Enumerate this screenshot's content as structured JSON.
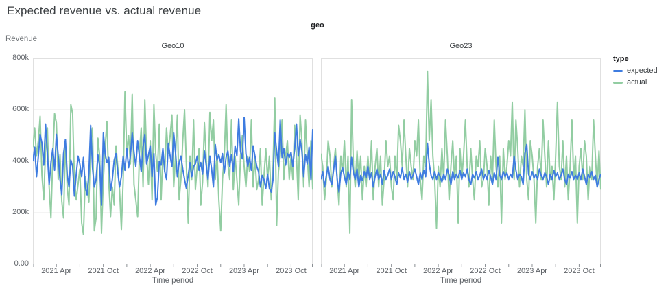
{
  "page": {
    "title": "Expected revenue vs. actual revenue"
  },
  "facet": {
    "label": "geo"
  },
  "legend": {
    "title": "type",
    "items": [
      {
        "label": "expected",
        "color": "#3e7ce0"
      },
      {
        "label": "actual",
        "color": "#92cda2"
      }
    ]
  },
  "colors": {
    "expected_line": "#3e7ce0",
    "actual_line": "#92cda2",
    "grid": "#e9e9e9",
    "plot_border": "#e0e0e0",
    "axis_line": "#8a8f94",
    "tick_text": "#5f6368"
  },
  "chart_data": {
    "type": "line",
    "title": "Expected revenue vs. actual revenue",
    "facet_field": "geo",
    "xlabel": "Time period",
    "ylabel": "Revenue",
    "ylim": [
      0,
      800000
    ],
    "value_unit_multiplier": 1000,
    "x_domain": "weekly, 2021 Jan through 2023 Dec (156 points)",
    "grid": true,
    "legend_position": "right",
    "y_ticks": [
      {
        "value": 800,
        "label": "800k"
      },
      {
        "value": 600,
        "label": "600k"
      },
      {
        "value": 400,
        "label": "400k"
      },
      {
        "value": 200,
        "label": "200k"
      },
      {
        "value": 0,
        "label": "0.00"
      }
    ],
    "x_ticks": {
      "labeled": [
        {
          "week": 13,
          "label": "2021 Apr"
        },
        {
          "week": 39,
          "label": "2021 Oct"
        },
        {
          "week": 65,
          "label": "2022 Apr"
        },
        {
          "week": 91,
          "label": "2022 Oct"
        },
        {
          "week": 117,
          "label": "2023 Apr"
        },
        {
          "week": 143,
          "label": "2023 Oct"
        }
      ],
      "minor_weeks": [
        0,
        26,
        52,
        78,
        104,
        130,
        155
      ]
    },
    "series_colors": {
      "expected": "#3e7ce0",
      "actual": "#92cda2"
    },
    "panels": [
      {
        "title": "Geo10",
        "series": [
          {
            "name": "expected",
            "values": [
              400,
              455,
              340,
              420,
              505,
              470,
              385,
              545,
              430,
              310,
              395,
              450,
              365,
              505,
              420,
              330,
              270,
              430,
              485,
              350,
              300,
              405,
              380,
              265,
              350,
              420,
              390,
              340,
              415,
              300,
              270,
              355,
              540,
              375,
              300,
              330,
              425,
              380,
              230,
              510,
              430,
              395,
              415,
              285,
              330,
              405,
              430,
              360,
              300,
              340,
              420,
              365,
              450,
              375,
              420,
              510,
              435,
              380,
              480,
              420,
              360,
              455,
              505,
              390,
              425,
              460,
              340,
              430,
              230,
              260,
              400,
              385,
              450,
              360,
              330,
              470,
              420,
              380,
              510,
              435,
              340,
              395,
              420,
              370,
              330,
              295,
              345,
              395,
              340,
              380,
              390,
              420,
              365,
              395,
              350,
              440,
              385,
              330,
              420,
              370,
              300,
              465,
              405,
              425,
              395,
              430,
              355,
              415,
              440,
              380,
              425,
              360,
              460,
              420,
              565,
              440,
              410,
              570,
              430,
              380,
              415,
              365,
              460,
              420,
              380,
              360,
              300,
              345,
              330,
              295,
              350,
              295,
              280,
              330,
              510,
              440,
              380,
              560,
              415,
              450,
              385,
              430,
              415,
              435,
              380,
              450,
              545,
              420,
              485,
              440,
              340,
              425,
              390,
              455,
              330,
              525
            ]
          },
          {
            "name": "actual",
            "values": [
              455,
              530,
              420,
              480,
              575,
              345,
              250,
              445,
              530,
              300,
              180,
              420,
              585,
              550,
              330,
              425,
              245,
              180,
              480,
              300,
              230,
              620,
              585,
              330,
              250,
              310,
              370,
              160,
              115,
              340,
              300,
              240,
              475,
              530,
              130,
              180,
              490,
              420,
              120,
              330,
              455,
              555,
              320,
              185,
              300,
              230,
              460,
              380,
              290,
              135,
              325,
              670,
              430,
              500,
              390,
              660,
              310,
              250,
              185,
              430,
              530,
              300,
              640,
              420,
              310,
              480,
              250,
              620,
              430,
              360,
              545,
              250,
              430,
              360,
              530,
              430,
              500,
              580,
              300,
              420,
              580,
              250,
              330,
              480,
              600,
              390,
              160,
              420,
              330,
              560,
              290,
              380,
              450,
              230,
              320,
              550,
              410,
              300,
              590,
              480,
              560,
              330,
              430,
              250,
              130,
              330,
              420,
              620,
              390,
              330,
              560,
              290,
              420,
              330,
              230,
              420,
              500,
              380,
              300,
              420,
              360,
              560,
              300,
              420,
              290,
              330,
              450,
              230,
              340,
              450,
              330,
              420,
              250,
              380,
              645,
              150,
              360,
              420,
              560,
              330,
              420,
              480,
              330,
              420,
              330,
              540,
              420,
              250,
              580,
              480,
              300,
              560,
              420,
              300,
              480,
              290
            ]
          }
        ]
      },
      {
        "title": "Geo23",
        "series": [
          {
            "name": "expected",
            "values": [
              330,
              360,
              300,
              345,
              380,
              330,
              310,
              365,
              420,
              330,
              280,
              355,
              375,
              340,
              310,
              360,
              330,
              415,
              355,
              330,
              370,
              300,
              345,
              325,
              360,
              335,
              380,
              330,
              355,
              300,
              340,
              370,
              330,
              350,
              310,
              365,
              330,
              345,
              370,
              330,
              360,
              340,
              310,
              355,
              335,
              375,
              330,
              350,
              320,
              360,
              330,
              345,
              370,
              340,
              310,
              355,
              330,
              365,
              340,
              470,
              390,
              345,
              330,
              360,
              330,
              355,
              340,
              320,
              350,
              330,
              370,
              345,
              310,
              360,
              330,
              350,
              335,
              365,
              330,
              355,
              340,
              370,
              330,
              310,
              350,
              335,
              360,
              330,
              345,
              370,
              330,
              350,
              330,
              365,
              340,
              310,
              355,
              330,
              415,
              345,
              330,
              360,
              340,
              355,
              330,
              350,
              335,
              420,
              365,
              330,
              350,
              340,
              310,
              430,
              465,
              350,
              330,
              360,
              335,
              350,
              330,
              370,
              345,
              330,
              355,
              340,
              310,
              350,
              330,
              365,
              340,
              355,
              330,
              345,
              370,
              330,
              310,
              350,
              335,
              360,
              330,
              345,
              330,
              355,
              330,
              370,
              340,
              310,
              350,
              335,
              360,
              330,
              345,
              300,
              330,
              350
            ]
          },
          {
            "name": "actual",
            "values": [
              430,
              380,
              250,
              330,
              480,
              420,
              300,
              380,
              450,
              330,
              230,
              420,
              360,
              480,
              300,
              420,
              120,
              640,
              380,
              300,
              440,
              330,
              420,
              250,
              380,
              300,
              420,
              330,
              480,
              250,
              380,
              450,
              300,
              420,
              230,
              330,
              480,
              380,
              420,
              300,
              250,
              420,
              330,
              540,
              480,
              380,
              560,
              420,
              300,
              450,
              380,
              330,
              480,
              420,
              560,
              330,
              250,
              420,
              380,
              750,
              480,
              640,
              420,
              330,
              140,
              380,
              300,
              450,
              330,
              560,
              420,
              250,
              380,
              480,
              330,
              420,
              160,
              450,
              330,
              420,
              560,
              380,
              300,
              450,
              330,
              250,
              420,
              380,
              480,
              300,
              330,
              450,
              380,
              230,
              420,
              330,
              560,
              380,
              300,
              420,
              160,
              450,
              330,
              380,
              480,
              420,
              630,
              330,
              560,
              450,
              300,
              420,
              380,
              600,
              330,
              250,
              480,
              420,
              330,
              160,
              380,
              450,
              330,
              560,
              420,
              300,
              480,
              330,
              380,
              250,
              420,
              630,
              380,
              330,
              480,
              300,
              420,
              250,
              380,
              560,
              330,
              420,
              160,
              380,
              450,
              330,
              480,
              420,
              250,
              380,
              330,
              560,
              420,
              300,
              440,
              290
            ]
          }
        ]
      }
    ]
  }
}
